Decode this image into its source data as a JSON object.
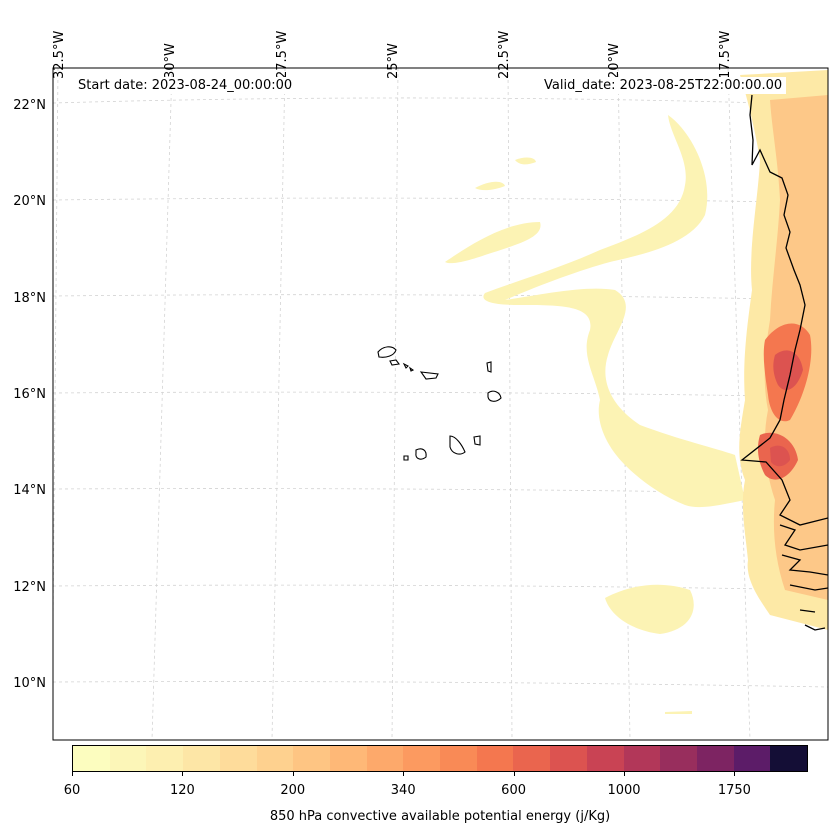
{
  "map": {
    "start_label": "Start date: 2023-08-24_00:00:00",
    "valid_label": "Valid_date: 2023-08-25T22:00:00.00",
    "lon_labels": [
      "32.5°W",
      "30°W",
      "27.5°W",
      "25°W",
      "22.5°W",
      "20°W",
      "17.5°W"
    ],
    "lat_labels": [
      "22°N",
      "20°N",
      "18°N",
      "16°N",
      "14°N",
      "12°N",
      "10°N"
    ],
    "colors": {
      "coast": "#000000",
      "grid": "#cccccc",
      "water": "#ffffff"
    }
  },
  "colorbar": {
    "label": "850 hPa convective available potential energy (j/Kg)",
    "ticks": [
      "60",
      "120",
      "200",
      "340",
      "600",
      "1000",
      "1750"
    ],
    "colors": [
      "#fcfdbf",
      "#fcf6b8",
      "#fdefb0",
      "#fde6a6",
      "#fedc9b",
      "#fed18f",
      "#fec583",
      "#feb877",
      "#fda96b",
      "#fc9a60",
      "#f98a56",
      "#f4774f",
      "#ea654e",
      "#dc5350",
      "#c94354",
      "#b23759",
      "#982e5d",
      "#7d2462",
      "#5c1c68",
      "#140e36"
    ]
  }
}
